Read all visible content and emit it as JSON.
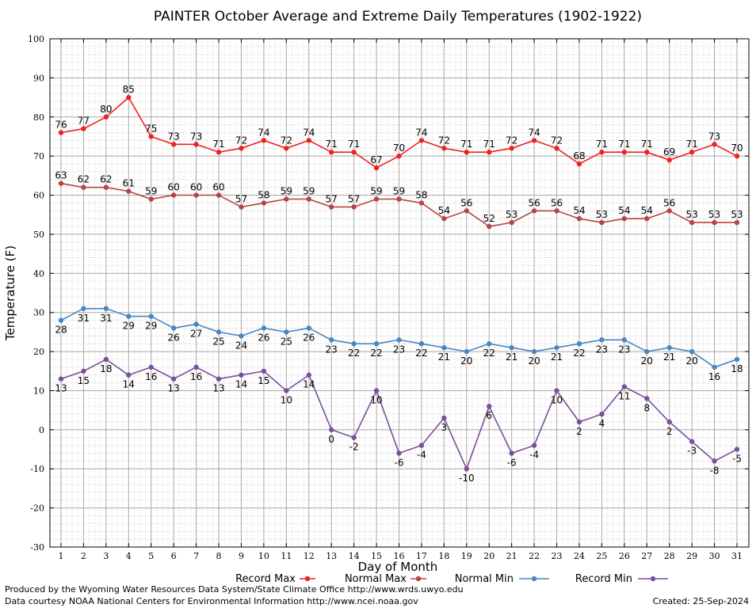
{
  "chart_data": {
    "type": "line",
    "title": "PAINTER October Average and Extreme Daily Temperatures (1902-1922)",
    "xlabel": "Day of Month",
    "ylabel": "Temperature (F)",
    "ylim": [
      -30,
      100
    ],
    "yticks": [
      "-30",
      "-20",
      "-10",
      "0",
      "10",
      "20",
      "30",
      "40",
      "50",
      "60",
      "70",
      "80",
      "90",
      "100"
    ],
    "x": [
      "1",
      "2",
      "3",
      "4",
      "5",
      "6",
      "7",
      "8",
      "9",
      "10",
      "11",
      "12",
      "13",
      "14",
      "15",
      "16",
      "17",
      "18",
      "19",
      "20",
      "21",
      "22",
      "23",
      "24",
      "25",
      "26",
      "27",
      "28",
      "29",
      "30",
      "31"
    ],
    "grid": true,
    "legend_position": "bottom",
    "series": [
      {
        "name": "Record Max",
        "color": "#ee2222",
        "label_pos": "above",
        "values": [
          76,
          77,
          80,
          85,
          75,
          73,
          73,
          71,
          72,
          74,
          72,
          74,
          71,
          71,
          67,
          70,
          74,
          72,
          71,
          71,
          72,
          74,
          72,
          68,
          71,
          71,
          71,
          69,
          71,
          73,
          70
        ]
      },
      {
        "name": "Normal Max",
        "color": "#b84444",
        "label_pos": "above",
        "values": [
          63,
          62,
          62,
          61,
          59,
          60,
          60,
          60,
          57,
          58,
          59,
          59,
          57,
          57,
          59,
          59,
          58,
          54,
          56,
          52,
          53,
          56,
          56,
          54,
          53,
          54,
          54,
          56,
          53,
          53,
          53
        ]
      },
      {
        "name": "Normal Min",
        "color": "#4a86c0",
        "label_pos": "below",
        "values": [
          28,
          31,
          31,
          29,
          29,
          26,
          27,
          25,
          24,
          26,
          25,
          26,
          23,
          22,
          22,
          23,
          22,
          21,
          20,
          22,
          21,
          20,
          21,
          22,
          23,
          23,
          20,
          21,
          20,
          16,
          18
        ]
      },
      {
        "name": "Record Min",
        "color": "#7a4f9c",
        "label_pos": "below",
        "values": [
          13,
          15,
          18,
          14,
          16,
          13,
          16,
          13,
          14,
          15,
          10,
          14,
          0,
          -2,
          10,
          -6,
          -4,
          3,
          -10,
          6,
          -6,
          -4,
          10,
          2,
          4,
          11,
          8,
          2,
          -3,
          -8,
          -5
        ]
      }
    ]
  },
  "footer": {
    "produced_by": "Produced by the Wyoming Water Resources Data System/State Climate Office http://www.wrds.uwyo.edu",
    "courtesy": "Data courtesy NOAA National Centers for Environmental Information http://www.ncei.noaa.gov",
    "created": "Created:  25-Sep-2024"
  }
}
